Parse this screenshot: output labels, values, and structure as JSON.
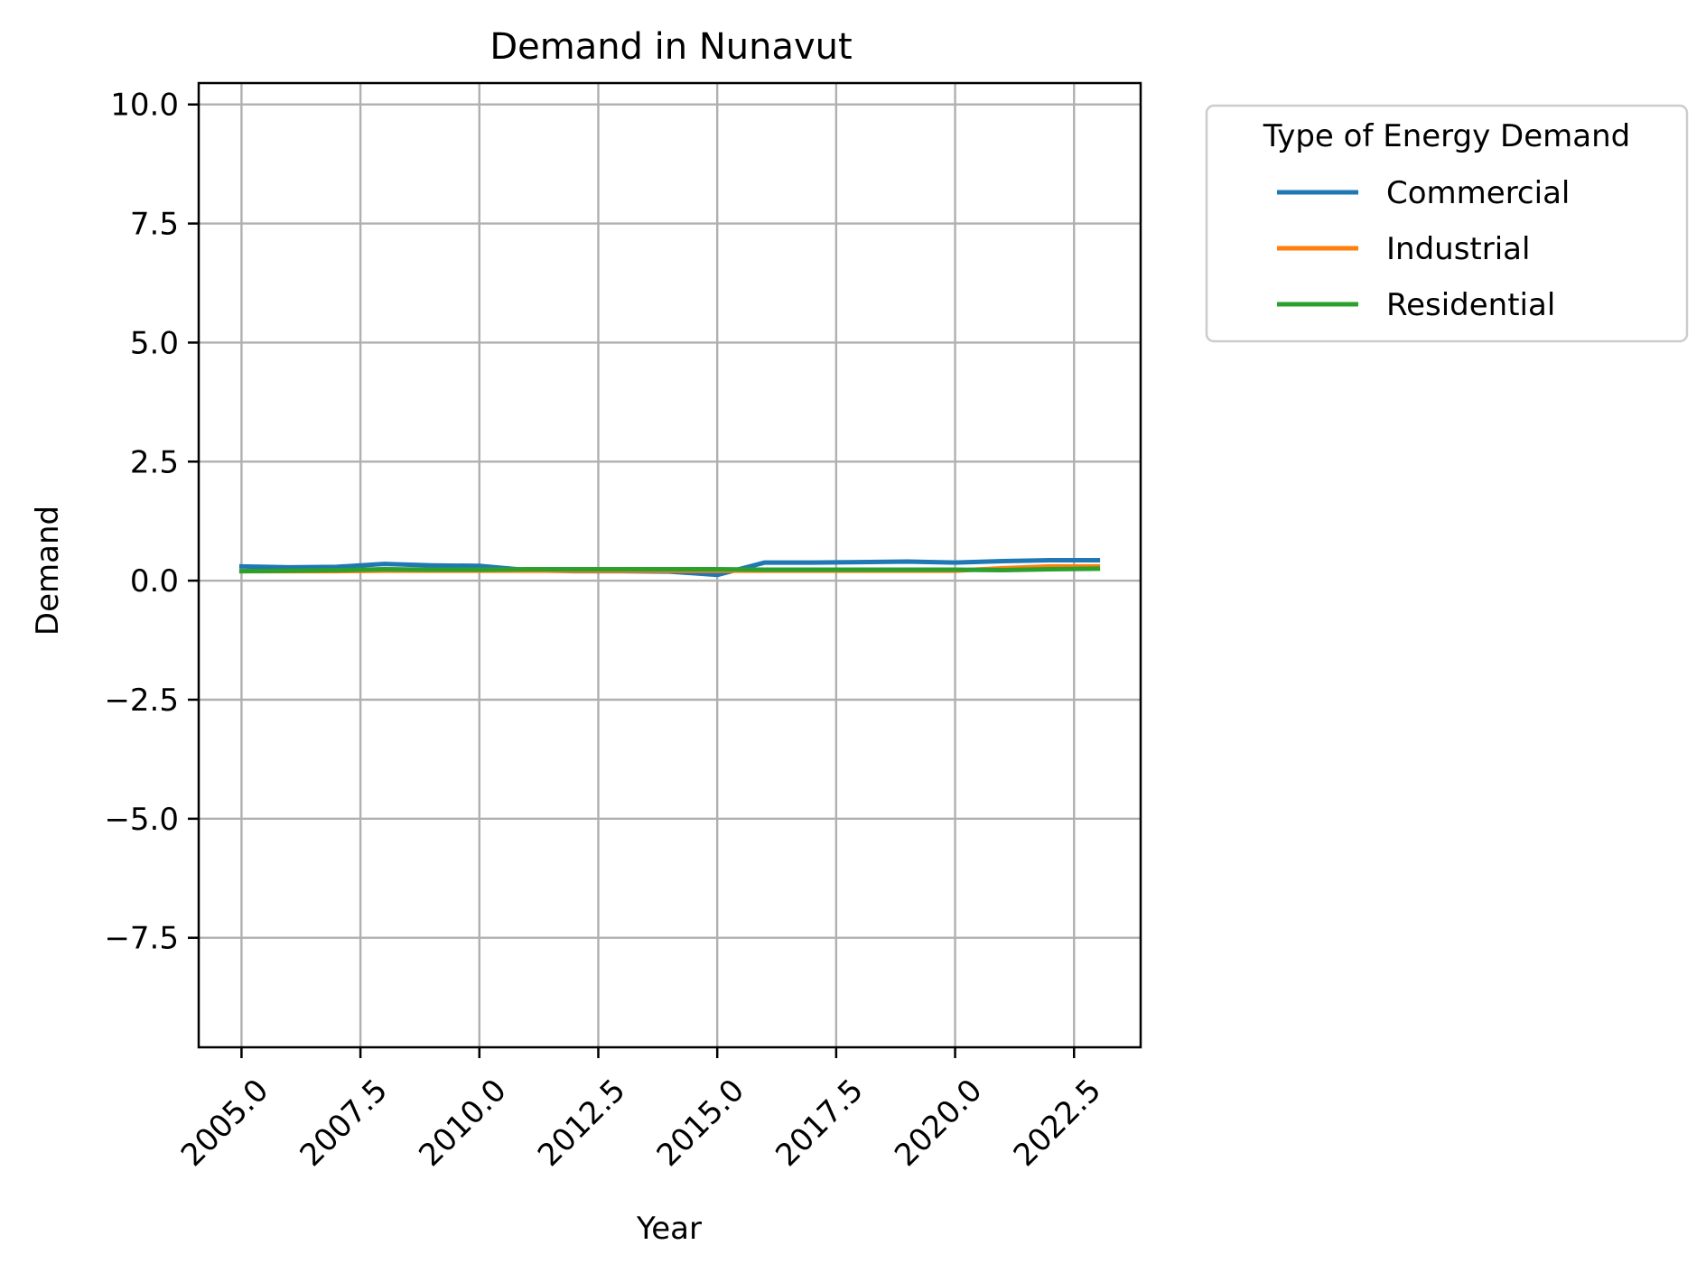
{
  "chart_data": {
    "type": "line",
    "title": "Demand in Nunavut",
    "xlabel": "Year",
    "ylabel": "Demand",
    "xlim": [
      2004.1,
      2023.9
    ],
    "ylim": [
      -9.8,
      10.45
    ],
    "xticks": [
      2005.0,
      2007.5,
      2010.0,
      2012.5,
      2015.0,
      2017.5,
      2020.0,
      2022.5
    ],
    "xtick_labels": [
      "2005.0",
      "2007.5",
      "2010.0",
      "2012.5",
      "2015.0",
      "2017.5",
      "2020.0",
      "2022.5"
    ],
    "yticks": [
      10.0,
      7.5,
      5.0,
      2.5,
      0.0,
      -2.5,
      -5.0,
      -7.5
    ],
    "ytick_labels": [
      "10.0",
      "7.5",
      "5.0",
      "2.5",
      "0.0",
      "−2.5",
      "−5.0",
      "−7.5"
    ],
    "grid": true,
    "legend": {
      "title": "Type of Energy Demand",
      "placement": "outside-top-right"
    },
    "x": [
      2005,
      2006,
      2007,
      2008,
      2009,
      2010,
      2011,
      2012,
      2013,
      2014,
      2015,
      2016,
      2017,
      2018,
      2019,
      2020,
      2021,
      2022,
      2023
    ],
    "series": [
      {
        "name": "Commercial",
        "color": "#1f77b4",
        "values": [
          0.3,
          0.28,
          0.29,
          0.35,
          0.32,
          0.31,
          0.22,
          0.2,
          0.2,
          0.19,
          0.12,
          0.38,
          0.38,
          0.39,
          0.4,
          0.38,
          0.41,
          0.43,
          0.43
        ]
      },
      {
        "name": "Industrial",
        "color": "#ff7f0e",
        "values": [
          0.2,
          0.2,
          0.2,
          0.21,
          0.21,
          0.21,
          0.21,
          0.21,
          0.21,
          0.21,
          0.21,
          0.21,
          0.21,
          0.21,
          0.21,
          0.21,
          0.26,
          0.3,
          0.3
        ]
      },
      {
        "name": "Residential",
        "color": "#2ca02c",
        "values": [
          0.2,
          0.21,
          0.22,
          0.24,
          0.23,
          0.23,
          0.24,
          0.24,
          0.24,
          0.24,
          0.24,
          0.23,
          0.23,
          0.23,
          0.23,
          0.23,
          0.22,
          0.24,
          0.25
        ]
      }
    ]
  }
}
